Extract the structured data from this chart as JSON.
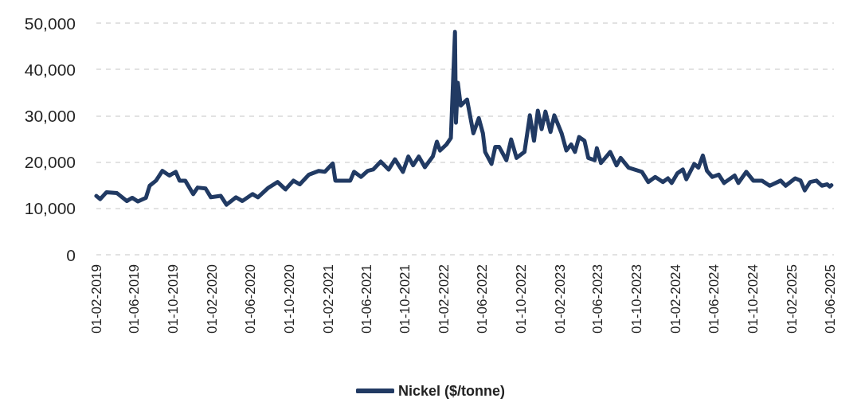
{
  "chart_data": {
    "type": "line",
    "x": [
      "2019-02-01",
      "2019-02-13",
      "2019-03-05",
      "2019-04-07",
      "2019-05-08",
      "2019-05-25",
      "2019-06-12",
      "2019-07-07",
      "2019-07-19",
      "2019-08-08",
      "2019-08-28",
      "2019-09-19",
      "2019-10-09",
      "2019-10-21",
      "2019-11-08",
      "2019-12-03",
      "2019-12-17",
      "2020-01-11",
      "2020-01-28",
      "2020-02-28",
      "2020-03-17",
      "2020-04-16",
      "2020-05-06",
      "2020-06-07",
      "2020-06-24",
      "2020-07-26",
      "2020-08-25",
      "2020-09-19",
      "2020-10-14",
      "2020-11-03",
      "2020-12-02",
      "2021-01-02",
      "2021-01-21",
      "2021-02-15",
      "2021-02-23",
      "2021-03-22",
      "2021-04-11",
      "2021-04-23",
      "2021-05-15",
      "2021-06-05",
      "2021-06-22",
      "2021-07-16",
      "2021-08-10",
      "2021-08-30",
      "2021-09-24",
      "2021-10-11",
      "2021-10-26",
      "2021-11-13",
      "2021-12-02",
      "2021-12-27",
      "2022-01-09",
      "2022-01-19",
      "2022-02-08",
      "2022-02-22",
      "2022-03-07",
      "2022-03-10",
      "2022-03-16",
      "2022-03-25",
      "2022-04-14",
      "2022-05-04",
      "2022-05-21",
      "2022-06-03",
      "2022-06-10",
      "2022-06-30",
      "2022-07-12",
      "2022-07-24",
      "2022-08-16",
      "2022-08-31",
      "2022-09-17",
      "2022-10-12",
      "2022-10-29",
      "2022-11-11",
      "2022-11-23",
      "2022-12-05",
      "2022-12-17",
      "2023-01-02",
      "2023-01-14",
      "2023-02-06",
      "2023-02-21",
      "2023-03-08",
      "2023-03-20",
      "2023-04-02",
      "2023-04-19",
      "2023-05-01",
      "2023-05-21",
      "2023-05-28",
      "2023-06-10",
      "2023-07-09",
      "2023-07-29",
      "2023-08-11",
      "2023-09-05",
      "2023-10-17",
      "2023-11-06",
      "2023-11-28",
      "2023-12-22",
      "2024-01-07",
      "2024-01-19",
      "2024-02-06",
      "2024-02-23",
      "2024-03-05",
      "2024-03-30",
      "2024-04-12",
      "2024-04-26",
      "2024-05-09",
      "2024-05-26",
      "2024-06-15",
      "2024-07-02",
      "2024-08-04",
      "2024-08-16",
      "2024-09-10",
      "2024-10-02",
      "2024-10-29",
      "2024-11-23",
      "2024-12-27",
      "2025-01-12",
      "2025-02-11",
      "2025-02-28",
      "2025-03-13",
      "2025-03-30",
      "2025-04-19",
      "2025-05-06",
      "2025-05-23",
      "2025-05-31",
      "2025-06-05"
    ],
    "series": [
      {
        "name": "Nickel ($/tonne)",
        "color": "#213a63",
        "values": [
          12700,
          12000,
          13500,
          13300,
          11600,
          12300,
          11500,
          12300,
          14900,
          16000,
          18100,
          17100,
          17900,
          16000,
          16000,
          13100,
          14500,
          14300,
          12400,
          12700,
          10800,
          12400,
          11600,
          13100,
          12400,
          14400,
          15700,
          14100,
          16000,
          15200,
          17300,
          18100,
          17900,
          19700,
          16000,
          16000,
          16000,
          17900,
          16800,
          18100,
          18400,
          20100,
          18400,
          20600,
          17900,
          21200,
          19300,
          21200,
          18900,
          21200,
          24400,
          22500,
          23800,
          25200,
          48100,
          28500,
          37100,
          32200,
          33500,
          26200,
          29500,
          26200,
          22200,
          19600,
          23300,
          23300,
          20400,
          24900,
          20900,
          22200,
          30100,
          24600,
          31100,
          27100,
          30900,
          26500,
          30100,
          26200,
          22500,
          23800,
          22200,
          25400,
          24600,
          20900,
          20400,
          23000,
          19800,
          22200,
          19300,
          20900,
          18800,
          17900,
          15700,
          16800,
          15700,
          16500,
          15500,
          17600,
          18400,
          16300,
          19600,
          18800,
          21400,
          18100,
          16800,
          17300,
          15500,
          17100,
          15500,
          17900,
          16000,
          16000,
          14900,
          16000,
          14900,
          16500,
          16000,
          13900,
          15700,
          16000,
          14900,
          15200,
          14700,
          15000
        ]
      }
    ],
    "xlim": [
      "2019-02-01",
      "2025-06-13"
    ],
    "xticks": [
      {
        "value": "2019-02-01",
        "label": "01-02-2019"
      },
      {
        "value": "2019-06-01",
        "label": "01-06-2019"
      },
      {
        "value": "2019-10-01",
        "label": "01-10-2019"
      },
      {
        "value": "2020-02-01",
        "label": "01-02-2020"
      },
      {
        "value": "2020-06-01",
        "label": "01-06-2020"
      },
      {
        "value": "2020-10-01",
        "label": "01-10-2020"
      },
      {
        "value": "2021-02-01",
        "label": "01-02-2021"
      },
      {
        "value": "2021-06-01",
        "label": "01-06-2021"
      },
      {
        "value": "2021-10-01",
        "label": "01-10-2021"
      },
      {
        "value": "2022-02-01",
        "label": "01-02-2022"
      },
      {
        "value": "2022-06-01",
        "label": "01-06-2022"
      },
      {
        "value": "2022-10-01",
        "label": "01-10-2022"
      },
      {
        "value": "2023-02-01",
        "label": "01-02-2023"
      },
      {
        "value": "2023-06-01",
        "label": "01-06-2023"
      },
      {
        "value": "2023-10-01",
        "label": "01-10-2023"
      },
      {
        "value": "2024-02-01",
        "label": "01-02-2024"
      },
      {
        "value": "2024-06-01",
        "label": "01-06-2024"
      },
      {
        "value": "2024-10-01",
        "label": "01-10-2024"
      },
      {
        "value": "2025-02-01",
        "label": "01-02-2025"
      },
      {
        "value": "2025-06-01",
        "label": "01-06-2025"
      }
    ],
    "ylim": [
      0,
      50000
    ],
    "yticks": [
      0,
      {
        "value": 10000,
        "label": "10,000"
      },
      {
        "value": 20000,
        "label": "20,000"
      },
      {
        "value": 30000,
        "label": "30,000"
      },
      {
        "value": 40000,
        "label": "40,000"
      },
      {
        "value": 50000,
        "label": "50,000"
      }
    ],
    "grid": "y",
    "legend": "bottom",
    "marker": "none",
    "line_style": "solid"
  }
}
